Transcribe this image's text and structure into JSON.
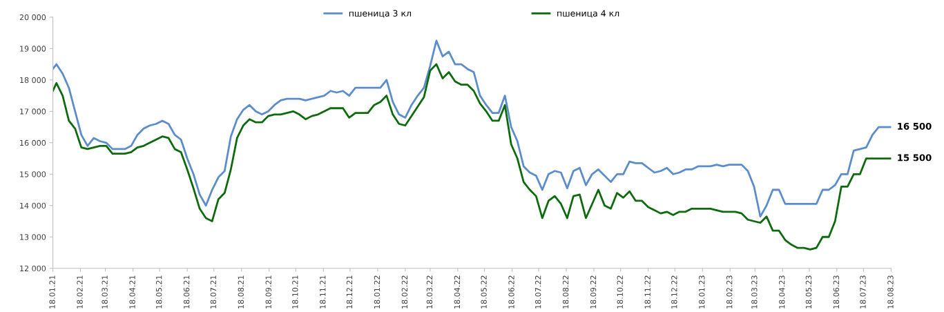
{
  "chart_data": {
    "type": "line",
    "xlim": [
      "2021-01-18",
      "2023-08-18"
    ],
    "xticks": [
      {
        "value": "2021-01-18",
        "label": "18.01.21"
      },
      {
        "value": "2021-02-18",
        "label": "18.02.21"
      },
      {
        "value": "2021-03-18",
        "label": "18.03.21"
      },
      {
        "value": "2021-04-18",
        "label": "18.04.21"
      },
      {
        "value": "2021-05-18",
        "label": "18.05.21"
      },
      {
        "value": "2021-06-18",
        "label": "18.06.21"
      },
      {
        "value": "2021-07-18",
        "label": "18.07.21"
      },
      {
        "value": "2021-08-18",
        "label": "18.08.21"
      },
      {
        "value": "2021-09-18",
        "label": "18.09.21"
      },
      {
        "value": "2021-10-18",
        "label": "18.10.21"
      },
      {
        "value": "2021-11-18",
        "label": "18.11.21"
      },
      {
        "value": "2021-12-18",
        "label": "18.12.21"
      },
      {
        "value": "2022-01-18",
        "label": "18.01.22"
      },
      {
        "value": "2022-02-18",
        "label": "18.02.22"
      },
      {
        "value": "2022-03-18",
        "label": "18.03.22"
      },
      {
        "value": "2022-04-18",
        "label": "18.04.22"
      },
      {
        "value": "2022-05-18",
        "label": "18.05.22"
      },
      {
        "value": "2022-06-18",
        "label": "18.06.22"
      },
      {
        "value": "2022-07-18",
        "label": "18.07.22"
      },
      {
        "value": "2022-08-18",
        "label": "18.08.22"
      },
      {
        "value": "2022-09-18",
        "label": "18.09.22"
      },
      {
        "value": "2022-10-18",
        "label": "18.10.22"
      },
      {
        "value": "2022-11-18",
        "label": "18.11.22"
      },
      {
        "value": "2022-12-18",
        "label": "18.12.22"
      },
      {
        "value": "2023-01-18",
        "label": "18.01.23"
      },
      {
        "value": "2023-02-18",
        "label": "18.02.23"
      },
      {
        "value": "2023-03-18",
        "label": "18.03.23"
      },
      {
        "value": "2023-04-18",
        "label": "18.04.23"
      },
      {
        "value": "2023-05-18",
        "label": "18.05.23"
      },
      {
        "value": "2023-06-18",
        "label": "18.06.23"
      },
      {
        "value": "2023-07-18",
        "label": "18.07.23"
      },
      {
        "value": "2023-08-18",
        "label": "18.08.23"
      }
    ],
    "ylim": [
      12000,
      20000
    ],
    "yticks": [
      {
        "value": 12000,
        "label": "12 000"
      },
      {
        "value": 13000,
        "label": "13 000"
      },
      {
        "value": 14000,
        "label": "14 000"
      },
      {
        "value": 15000,
        "label": "15 000"
      },
      {
        "value": 16000,
        "label": "16 000"
      },
      {
        "value": 17000,
        "label": "17 000"
      },
      {
        "value": 18000,
        "label": "18 000"
      },
      {
        "value": 19000,
        "label": "19 000"
      },
      {
        "value": 20000,
        "label": "20 000"
      }
    ],
    "grid": false,
    "legend": "top",
    "marker": "none",
    "line_style": "solid",
    "series": [
      {
        "name": "пшеница 3 кл",
        "color": "#5b8ccc",
        "x": [
          "2021-01-18",
          "2021-01-22",
          "2021-01-29",
          "2021-02-05",
          "2021-02-12",
          "2021-02-19",
          "2021-02-26",
          "2021-03-05",
          "2021-03-12",
          "2021-03-19",
          "2021-03-26",
          "2021-04-09",
          "2021-04-16",
          "2021-04-23",
          "2021-04-30",
          "2021-05-07",
          "2021-05-14",
          "2021-05-21",
          "2021-05-28",
          "2021-06-04",
          "2021-06-11",
          "2021-06-18",
          "2021-06-25",
          "2021-07-02",
          "2021-07-09",
          "2021-07-16",
          "2021-07-23",
          "2021-07-30",
          "2021-08-06",
          "2021-08-13",
          "2021-08-20",
          "2021-08-27",
          "2021-09-03",
          "2021-09-10",
          "2021-09-17",
          "2021-09-24",
          "2021-10-01",
          "2021-10-08",
          "2021-10-22",
          "2021-10-29",
          "2021-11-05",
          "2021-11-12",
          "2021-11-19",
          "2021-11-26",
          "2021-12-03",
          "2021-12-10",
          "2021-12-17",
          "2021-12-24",
          "2022-01-21",
          "2022-01-28",
          "2022-02-04",
          "2022-02-11",
          "2022-02-18",
          "2022-02-25",
          "2022-03-04",
          "2022-03-11",
          "2022-03-18",
          "2022-03-25",
          "2022-04-01",
          "2022-04-08",
          "2022-04-15",
          "2022-04-22",
          "2022-04-29",
          "2022-05-06",
          "2022-05-13",
          "2022-05-20",
          "2022-05-27",
          "2022-06-03",
          "2022-06-10",
          "2022-06-17",
          "2022-06-24",
          "2022-07-01",
          "2022-07-08",
          "2022-07-15",
          "2022-07-22",
          "2022-07-29",
          "2022-08-05",
          "2022-08-12",
          "2022-08-19",
          "2022-08-26",
          "2022-09-02",
          "2022-09-09",
          "2022-09-16",
          "2022-09-23",
          "2022-10-07",
          "2022-10-14",
          "2022-10-21",
          "2022-10-28",
          "2022-11-04",
          "2022-11-11",
          "2022-11-25",
          "2022-12-02",
          "2022-12-09",
          "2022-12-16",
          "2022-12-23",
          "2022-12-30",
          "2023-01-06",
          "2023-01-13",
          "2023-01-27",
          "2023-02-03",
          "2023-02-10",
          "2023-02-17",
          "2023-03-03",
          "2023-03-10",
          "2023-03-17",
          "2023-03-24",
          "2023-03-31",
          "2023-04-07",
          "2023-04-14",
          "2023-04-21",
          "2023-05-26",
          "2023-06-02",
          "2023-06-09",
          "2023-06-16",
          "2023-06-23",
          "2023-06-30",
          "2023-07-07",
          "2023-07-14",
          "2023-07-21",
          "2023-07-28",
          "2023-08-04",
          "2023-08-18"
        ],
        "values": [
          18350,
          18500,
          18200,
          17750,
          17000,
          16250,
          15900,
          16150,
          16050,
          16000,
          15800,
          15800,
          15900,
          16250,
          16450,
          16550,
          16600,
          16700,
          16600,
          16250,
          16100,
          15500,
          15000,
          14350,
          14000,
          14500,
          14900,
          15100,
          16200,
          16750,
          17050,
          17200,
          17000,
          16900,
          17000,
          17200,
          17350,
          17400,
          17400,
          17350,
          17400,
          17450,
          17500,
          17650,
          17600,
          17650,
          17500,
          17750,
          17750,
          18000,
          17300,
          16900,
          16800,
          17200,
          17500,
          17750,
          18450,
          19250,
          18750,
          18900,
          18500,
          18500,
          18350,
          18250,
          17500,
          17200,
          16950,
          16950,
          17500,
          16500,
          16050,
          15250,
          15050,
          14950,
          14500,
          15000,
          15100,
          15050,
          14550,
          15100,
          15200,
          14650,
          15000,
          15150,
          14750,
          15000,
          15000,
          15400,
          15350,
          15350,
          15050,
          15100,
          15200,
          15000,
          15050,
          15150,
          15150,
          15250,
          15250,
          15300,
          15250,
          15300,
          15300,
          15100,
          14600,
          13650,
          14000,
          14500,
          14500,
          14050,
          14050,
          14500,
          14500,
          14650,
          15000,
          15000,
          15750,
          15800,
          15850,
          16250,
          16500,
          16500
        ]
      },
      {
        "name": "пшеница 4 кл",
        "color": "#0d6b0d",
        "x": [
          "2021-01-18",
          "2021-01-22",
          "2021-01-29",
          "2021-02-05",
          "2021-02-12",
          "2021-02-19",
          "2021-02-26",
          "2021-03-05",
          "2021-03-12",
          "2021-03-19",
          "2021-03-26",
          "2021-04-09",
          "2021-04-16",
          "2021-04-23",
          "2021-04-30",
          "2021-05-07",
          "2021-05-14",
          "2021-05-21",
          "2021-05-28",
          "2021-06-04",
          "2021-06-11",
          "2021-06-18",
          "2021-06-25",
          "2021-07-02",
          "2021-07-09",
          "2021-07-16",
          "2021-07-23",
          "2021-07-30",
          "2021-08-06",
          "2021-08-13",
          "2021-08-20",
          "2021-08-27",
          "2021-09-03",
          "2021-09-10",
          "2021-09-17",
          "2021-09-24",
          "2021-10-01",
          "2021-10-15",
          "2021-10-22",
          "2021-10-29",
          "2021-11-05",
          "2021-11-12",
          "2021-11-19",
          "2021-11-26",
          "2021-12-10",
          "2021-12-17",
          "2021-12-24",
          "2022-01-07",
          "2022-01-14",
          "2022-01-21",
          "2022-01-28",
          "2022-02-04",
          "2022-02-11",
          "2022-02-18",
          "2022-03-11",
          "2022-03-18",
          "2022-03-25",
          "2022-04-01",
          "2022-04-08",
          "2022-04-15",
          "2022-04-22",
          "2022-04-29",
          "2022-05-06",
          "2022-05-13",
          "2022-05-20",
          "2022-05-27",
          "2022-06-03",
          "2022-06-10",
          "2022-06-17",
          "2022-06-24",
          "2022-07-01",
          "2022-07-08",
          "2022-07-15",
          "2022-07-22",
          "2022-07-29",
          "2022-08-05",
          "2022-08-12",
          "2022-08-19",
          "2022-08-26",
          "2022-09-02",
          "2022-09-09",
          "2022-09-16",
          "2022-09-23",
          "2022-09-30",
          "2022-10-07",
          "2022-10-14",
          "2022-10-21",
          "2022-10-28",
          "2022-11-04",
          "2022-11-11",
          "2022-11-18",
          "2022-11-25",
          "2022-12-02",
          "2022-12-09",
          "2022-12-16",
          "2022-12-23",
          "2022-12-30",
          "2023-01-06",
          "2023-01-27",
          "2023-02-03",
          "2023-02-10",
          "2023-02-24",
          "2023-03-03",
          "2023-03-10",
          "2023-03-17",
          "2023-03-24",
          "2023-03-31",
          "2023-04-07",
          "2023-04-14",
          "2023-04-21",
          "2023-04-28",
          "2023-05-05",
          "2023-05-12",
          "2023-05-19",
          "2023-05-26",
          "2023-06-02",
          "2023-06-09",
          "2023-06-16",
          "2023-06-23",
          "2023-06-30",
          "2023-07-07",
          "2023-07-14",
          "2023-07-21",
          "2023-08-18"
        ],
        "values": [
          17650,
          17900,
          17500,
          16700,
          16450,
          15850,
          15800,
          15850,
          15900,
          15900,
          15650,
          15650,
          15700,
          15850,
          15900,
          16000,
          16100,
          16200,
          16150,
          15800,
          15700,
          15150,
          14550,
          13900,
          13600,
          13500,
          14200,
          14400,
          15150,
          16150,
          16550,
          16750,
          16650,
          16650,
          16850,
          16900,
          16900,
          17000,
          16900,
          16750,
          16850,
          16900,
          17000,
          17100,
          17100,
          16800,
          16950,
          16950,
          17200,
          17300,
          17500,
          16900,
          16600,
          16550,
          17450,
          18300,
          18500,
          18050,
          18250,
          17950,
          17850,
          17850,
          17650,
          17250,
          17000,
          16700,
          16700,
          17200,
          15950,
          15500,
          14750,
          14500,
          14300,
          13600,
          14150,
          14300,
          14050,
          13600,
          14300,
          14350,
          13600,
          14050,
          14500,
          14000,
          13900,
          14400,
          14250,
          14450,
          14150,
          14150,
          13950,
          13850,
          13750,
          13800,
          13700,
          13800,
          13800,
          13900,
          13900,
          13850,
          13800,
          13800,
          13750,
          13550,
          13500,
          13450,
          13650,
          13200,
          13200,
          12900,
          12750,
          12650,
          12650,
          12600,
          12650,
          13000,
          13000,
          13500,
          14600,
          14600,
          15000,
          15000,
          15500,
          15500
        ]
      }
    ],
    "annotations": [
      {
        "text": "16 500",
        "x": "2023-08-18",
        "y": 16500
      },
      {
        "text": "15 500",
        "x": "2023-08-18",
        "y": 15500
      }
    ]
  }
}
